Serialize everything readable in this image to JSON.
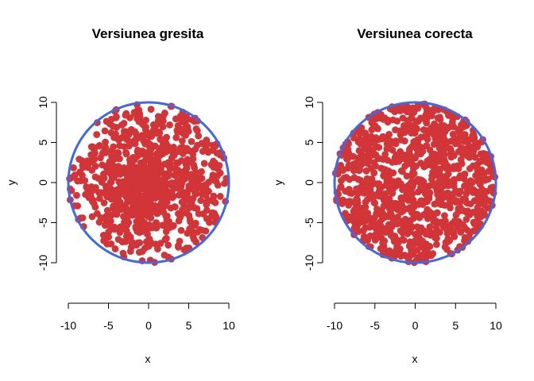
{
  "chart_data": [
    {
      "type": "scatter",
      "title": "Versiunea gresita",
      "xlabel": "x",
      "ylabel": "y",
      "xlim": [
        -10,
        10
      ],
      "ylim": [
        -10,
        10
      ],
      "xticks": [
        -10,
        -5,
        0,
        5,
        10
      ],
      "yticks": [
        -10,
        -5,
        0,
        5,
        10
      ],
      "xtick_labels": [
        "-10",
        "-5",
        "0",
        "5",
        "10"
      ],
      "ytick_labels": [
        "-10",
        "-5",
        "0",
        "5",
        "10"
      ],
      "circle": {
        "center": [
          0,
          0
        ],
        "radius": 10
      },
      "points": {
        "count": 1000,
        "distribution": "uniform radius and angle (density concentrated near center)",
        "seed": 7
      },
      "point_color": "#d13538",
      "circle_color": "#4169e1"
    },
    {
      "type": "scatter",
      "title": "Versiunea corecta",
      "xlabel": "x",
      "ylabel": "y",
      "xlim": [
        -10,
        10
      ],
      "ylim": [
        -10,
        10
      ],
      "xticks": [
        -10,
        -5,
        0,
        5,
        10
      ],
      "yticks": [
        -10,
        -5,
        0,
        5,
        10
      ],
      "xtick_labels": [
        "-10",
        "-5",
        "0",
        "5",
        "10"
      ],
      "ytick_labels": [
        "-10",
        "-5",
        "0",
        "5",
        "10"
      ],
      "circle": {
        "center": [
          0,
          0
        ],
        "radius": 10
      },
      "points": {
        "count": 1000,
        "distribution": "uniform over disk area (sqrt radius)",
        "seed": 11
      },
      "point_color": "#d13538",
      "circle_color": "#4169e1"
    }
  ]
}
